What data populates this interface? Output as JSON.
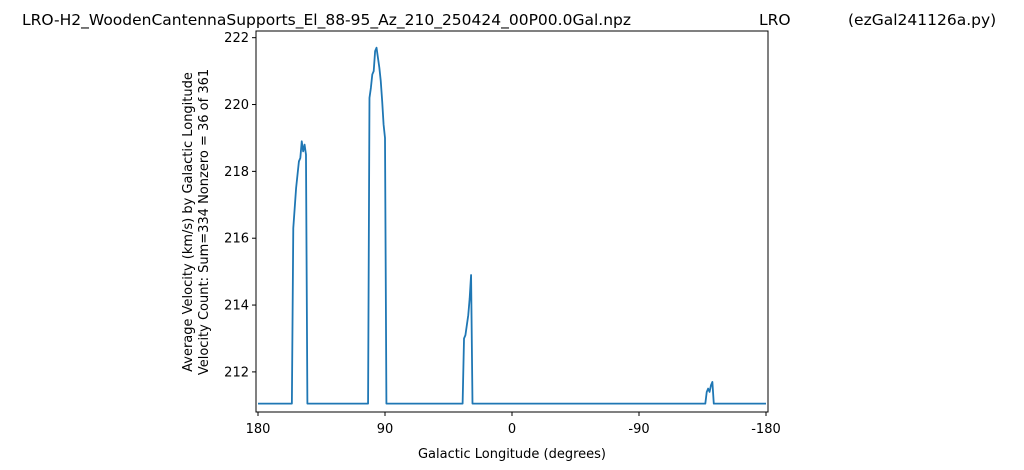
{
  "chart_data": {
    "type": "line",
    "title": {
      "file": "LRO-H2_WoodenCantennaSupports_El_88-95_Az_210_250424_00P00.0Gal.npz",
      "site": "LRO",
      "program": "(ezGal241126a.py)"
    },
    "xlabel": "Galactic Longitude (degrees)",
    "ylabel": [
      "Average Velocity (km/s) by Galactic Longitude",
      "Velocity Count: Sum=334 Nonzero = 36 of 361"
    ],
    "xlim": [
      180,
      -180
    ],
    "ylim": [
      210.8,
      222.2
    ],
    "x_ticks": [
      180,
      90,
      0,
      -90,
      -180
    ],
    "y_ticks": [
      212,
      214,
      216,
      218,
      220,
      222
    ],
    "grid": false,
    "series": [
      {
        "color": "#1f77b4",
        "x": [
          180,
          156,
          155,
          154,
          153,
          152,
          151,
          150,
          149,
          148,
          147,
          146,
          145,
          144,
          143,
          142,
          141,
          102,
          101,
          100,
          99,
          98,
          97,
          96,
          95,
          94,
          93,
          92,
          91,
          90,
          89,
          88,
          35,
          34,
          33,
          32,
          31,
          30,
          29,
          28,
          -137,
          -138,
          -139,
          -140,
          -141,
          -142,
          -143,
          -144,
          -180
        ],
        "y": [
          211.05,
          211.05,
          216.3,
          216.9,
          217.5,
          217.9,
          218.3,
          218.4,
          218.9,
          218.6,
          218.8,
          218.5,
          211.05,
          211.05,
          211.05,
          211.05,
          211.05,
          211.05,
          220.2,
          220.5,
          220.9,
          221.0,
          221.6,
          221.7,
          221.4,
          221.1,
          220.7,
          220.1,
          219.4,
          219.0,
          211.05,
          211.05,
          211.05,
          213.0,
          213.1,
          213.4,
          213.7,
          214.2,
          214.9,
          211.05,
          211.05,
          211.4,
          211.5,
          211.4,
          211.6,
          211.7,
          211.05,
          211.05,
          211.05
        ]
      }
    ]
  }
}
